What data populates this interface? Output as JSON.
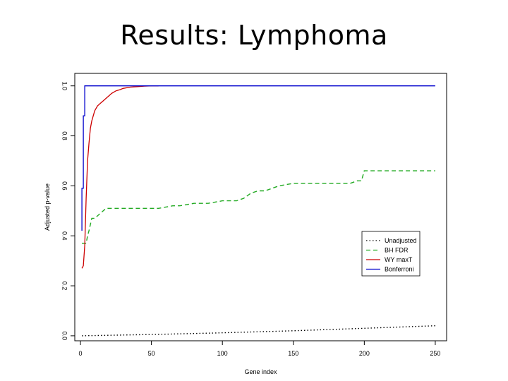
{
  "slide": {
    "title": "Results: Lymphoma"
  },
  "chart_data": {
    "type": "line",
    "title": "",
    "xlabel": "Gene index",
    "ylabel": "Adjusted p-value",
    "xlim": [
      -4,
      258
    ],
    "ylim": [
      -0.02,
      1.05
    ],
    "xticks": [
      0,
      50,
      100,
      150,
      200,
      250
    ],
    "yticks": [
      0.0,
      0.2,
      0.4,
      0.6,
      0.8,
      1.0
    ],
    "ytick_labels": [
      "0.0",
      "0.2",
      "0.4",
      "0.6",
      "0.8",
      "1.0"
    ],
    "grid": false,
    "legend_position": "bottom-right",
    "series": [
      {
        "name": "Unadjusted",
        "color": "#000000",
        "dash": "dotted",
        "x": [
          1,
          50,
          100,
          150,
          200,
          250
        ],
        "y": [
          0.0,
          0.005,
          0.012,
          0.02,
          0.03,
          0.04
        ]
      },
      {
        "name": "BH FDR",
        "color": "#22aa22",
        "dash": "dashed",
        "x": [
          1,
          4,
          5,
          6,
          8,
          10,
          18,
          20,
          35,
          50,
          55,
          65,
          70,
          80,
          90,
          100,
          110,
          115,
          120,
          125,
          130,
          140,
          150,
          160,
          170,
          180,
          190,
          195,
          198,
          200,
          205,
          210,
          220,
          230,
          240,
          250
        ],
        "y": [
          0.37,
          0.37,
          0.4,
          0.42,
          0.47,
          0.47,
          0.51,
          0.51,
          0.51,
          0.51,
          0.51,
          0.52,
          0.52,
          0.53,
          0.53,
          0.54,
          0.54,
          0.55,
          0.57,
          0.58,
          0.58,
          0.6,
          0.61,
          0.61,
          0.61,
          0.61,
          0.61,
          0.62,
          0.62,
          0.66,
          0.66,
          0.66,
          0.66,
          0.66,
          0.66,
          0.66
        ]
      },
      {
        "name": "WY maxT",
        "color": "#cc0000",
        "dash": "solid",
        "x": [
          1,
          2,
          3,
          4,
          5,
          6,
          7,
          8,
          10,
          12,
          14,
          16,
          18,
          20,
          22,
          25,
          28,
          30,
          35,
          40,
          45,
          50,
          55
        ],
        "y": [
          0.27,
          0.28,
          0.36,
          0.55,
          0.7,
          0.77,
          0.83,
          0.86,
          0.9,
          0.92,
          0.93,
          0.94,
          0.95,
          0.96,
          0.97,
          0.98,
          0.985,
          0.99,
          0.995,
          0.997,
          0.999,
          1.0,
          1.0
        ]
      },
      {
        "name": "Bonferroni",
        "color": "#0000cc",
        "dash": "solid",
        "x": [
          1,
          1,
          2,
          2,
          2,
          3,
          3,
          250
        ],
        "y": [
          0.42,
          0.59,
          0.59,
          0.72,
          0.88,
          0.88,
          1.0,
          1.0
        ]
      }
    ]
  }
}
